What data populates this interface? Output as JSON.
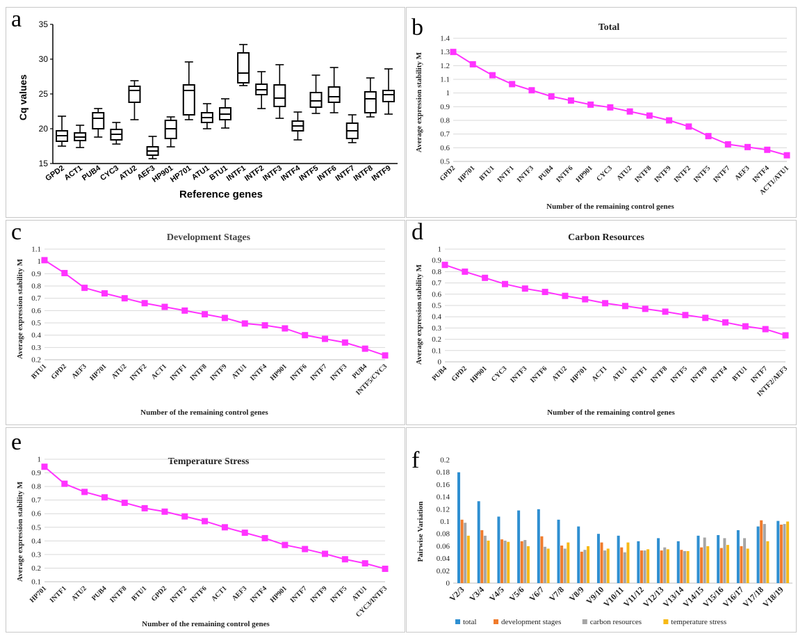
{
  "panels": {
    "a": "a",
    "b": "b",
    "c": "c",
    "d": "d",
    "e": "e",
    "f": "f"
  },
  "chart_data": [
    {
      "id": "a",
      "type": "box",
      "title": "",
      "xlabel": "Reference genes",
      "ylabel": "Cq values",
      "ylim": [
        15,
        35
      ],
      "yticks": [
        15,
        20,
        25,
        30,
        35
      ],
      "categories": [
        "GPD2",
        "ACT1",
        "PUB4",
        "CYC3",
        "ATU2",
        "AEF3",
        "HP901",
        "HP701",
        "ATU1",
        "BTU1",
        "INTF1",
        "INTF2",
        "INTF3",
        "INTF4",
        "INTF5",
        "INTF6",
        "INTF7",
        "INTF8",
        "INTF9"
      ],
      "boxes": [
        {
          "min": 17.5,
          "q1": 18.2,
          "median": 19.0,
          "q3": 19.7,
          "max": 21.8
        },
        {
          "min": 17.3,
          "q1": 18.3,
          "median": 18.8,
          "q3": 19.4,
          "max": 20.5
        },
        {
          "min": 18.8,
          "q1": 20.0,
          "median": 21.5,
          "q3": 22.3,
          "max": 22.9
        },
        {
          "min": 17.8,
          "q1": 18.4,
          "median": 19.2,
          "q3": 19.9,
          "max": 20.9
        },
        {
          "min": 21.3,
          "q1": 23.8,
          "median": 25.5,
          "q3": 26.1,
          "max": 26.9
        },
        {
          "min": 15.7,
          "q1": 16.2,
          "median": 16.8,
          "q3": 17.4,
          "max": 18.9
        },
        {
          "min": 17.4,
          "q1": 18.6,
          "median": 20.0,
          "q3": 21.2,
          "max": 21.7
        },
        {
          "min": 21.3,
          "q1": 22.0,
          "median": 25.5,
          "q3": 26.3,
          "max": 29.6
        },
        {
          "min": 20.0,
          "q1": 20.9,
          "median": 21.6,
          "q3": 22.3,
          "max": 23.6
        },
        {
          "min": 20.1,
          "q1": 21.3,
          "median": 22.1,
          "q3": 23.0,
          "max": 24.3
        },
        {
          "min": 26.2,
          "q1": 26.6,
          "median": 28.0,
          "q3": 30.9,
          "max": 32.1
        },
        {
          "min": 22.9,
          "q1": 24.9,
          "median": 25.6,
          "q3": 26.4,
          "max": 28.2
        },
        {
          "min": 21.5,
          "q1": 23.2,
          "median": 24.4,
          "q3": 26.3,
          "max": 29.2
        },
        {
          "min": 18.4,
          "q1": 19.7,
          "median": 20.4,
          "q3": 21.1,
          "max": 22.4
        },
        {
          "min": 22.2,
          "q1": 23.1,
          "median": 24.0,
          "q3": 25.2,
          "max": 27.7
        },
        {
          "min": 22.3,
          "q1": 23.8,
          "median": 24.6,
          "q3": 26.0,
          "max": 28.8
        },
        {
          "min": 18.0,
          "q1": 18.6,
          "median": 19.7,
          "q3": 20.8,
          "max": 22.0
        },
        {
          "min": 21.7,
          "q1": 22.3,
          "median": 24.3,
          "q3": 25.3,
          "max": 27.3
        },
        {
          "min": 22.1,
          "q1": 23.9,
          "median": 24.9,
          "q3": 25.5,
          "max": 28.6
        }
      ]
    },
    {
      "id": "b",
      "type": "line",
      "title": "Total",
      "xlabel": "Number of the remaining control genes",
      "ylabel": "Average expression stability M",
      "ylim": [
        0.5,
        1.4
      ],
      "yticks": [
        0.5,
        0.6,
        0.7,
        0.8,
        0.9,
        1,
        1.1,
        1.2,
        1.3,
        1.4
      ],
      "categories": [
        "GPD2",
        "HP701",
        "BTU1",
        "INTF1",
        "INTF3",
        "PUB4",
        "INTF6",
        "HP901",
        "CYC3",
        "ATU2",
        "INTF8",
        "INTF9",
        "INTF2",
        "INTF5",
        "INTF7",
        "AEF3",
        "INTF4",
        "ACT1/ATU1"
      ],
      "values": [
        1.3,
        1.21,
        1.13,
        1.065,
        1.02,
        0.975,
        0.945,
        0.915,
        0.895,
        0.865,
        0.835,
        0.8,
        0.755,
        0.685,
        0.625,
        0.605,
        0.585,
        0.545
      ]
    },
    {
      "id": "c",
      "type": "line",
      "title": "Development Stages",
      "xlabel": "Number of the remaining control genes",
      "ylabel": "Average expression stability M",
      "ylim": [
        0.2,
        1.1
      ],
      "yticks": [
        0.2,
        0.3,
        0.4,
        0.5,
        0.6,
        0.7,
        0.8,
        0.9,
        1,
        1.1
      ],
      "categories": [
        "BTU1",
        "GPD2",
        "AEF3",
        "HP701",
        "ATU2",
        "INTF2",
        "ACT1",
        "INTF1",
        "INTF8",
        "INTF9",
        "ATU1",
        "INTF4",
        "HP901",
        "INTF6",
        "INTF7",
        "INTF3",
        "PUB4",
        "INTF5/CYC3"
      ],
      "values": [
        1.01,
        0.905,
        0.785,
        0.74,
        0.7,
        0.66,
        0.63,
        0.6,
        0.57,
        0.54,
        0.495,
        0.48,
        0.455,
        0.4,
        0.37,
        0.34,
        0.29,
        0.235
      ]
    },
    {
      "id": "d",
      "type": "line",
      "title": "Carbon Resources",
      "xlabel": "Number of the remaining control genes",
      "ylabel": "Average expression stability M",
      "ylim": [
        0,
        1
      ],
      "yticks": [
        0,
        0.1,
        0.2,
        0.3,
        0.4,
        0.5,
        0.6,
        0.7,
        0.8,
        0.9,
        1
      ],
      "categories": [
        "PUB4",
        "GPD2",
        "HP901",
        "CYC3",
        "INTF3",
        "INTF6",
        "ATU2",
        "HP701",
        "ACT1",
        "ATU1",
        "INTF1",
        "INTF8",
        "INTF5",
        "INTF9",
        "INTF4",
        "BTU1",
        "INTF7",
        "INTF2/AEF3"
      ],
      "values": [
        0.86,
        0.8,
        0.745,
        0.69,
        0.65,
        0.62,
        0.585,
        0.555,
        0.52,
        0.495,
        0.47,
        0.445,
        0.415,
        0.39,
        0.35,
        0.315,
        0.29,
        0.235
      ]
    },
    {
      "id": "e",
      "type": "line",
      "title": "Temperature Stress",
      "xlabel": "Number of the remaining control genes",
      "ylabel": "Average expression stability M",
      "ylim": [
        0.1,
        1
      ],
      "yticks": [
        0.1,
        0.2,
        0.3,
        0.4,
        0.5,
        0.6,
        0.7,
        0.8,
        0.9,
        1
      ],
      "categories": [
        "HP701",
        "INTF1",
        "ATU2",
        "PUB4",
        "INTF8",
        "BTU1",
        "GPD2",
        "INTF2",
        "INTF6",
        "ACT1",
        "AEF3",
        "INTF4",
        "HP901",
        "INTF7",
        "INTF9",
        "INTF5",
        "ATU1",
        "CYC3/INTF3"
      ],
      "values": [
        0.945,
        0.82,
        0.76,
        0.72,
        0.68,
        0.64,
        0.615,
        0.58,
        0.545,
        0.5,
        0.46,
        0.42,
        0.37,
        0.34,
        0.305,
        0.265,
        0.235,
        0.195
      ]
    },
    {
      "id": "f",
      "type": "bar",
      "title": "",
      "xlabel": "",
      "ylabel": "Pairwise Variation",
      "ylim": [
        0,
        0.2
      ],
      "yticks": [
        0,
        0.02,
        0.04,
        0.06,
        0.08,
        0.1,
        0.12,
        0.14,
        0.16,
        0.18,
        0.2
      ],
      "categories": [
        "V2/3",
        "V3/4",
        "V4/5",
        "V5/6",
        "V6/7",
        "V7/8",
        "V8/9",
        "V9/10",
        "V10/11",
        "V11/12",
        "V12/13",
        "V13/14",
        "V14/15",
        "V15/16",
        "V16/17",
        "V17/18",
        "V18/19"
      ],
      "series": [
        {
          "name": "total",
          "color": "#2f8fd1",
          "values": [
            0.18,
            0.133,
            0.108,
            0.118,
            0.12,
            0.103,
            0.092,
            0.08,
            0.077,
            0.068,
            0.073,
            0.068,
            0.077,
            0.078,
            0.086,
            0.092,
            0.101
          ]
        },
        {
          "name": "development stages",
          "color": "#f07b2c",
          "values": [
            0.103,
            0.086,
            0.071,
            0.068,
            0.076,
            0.061,
            0.051,
            0.066,
            0.058,
            0.053,
            0.053,
            0.054,
            0.058,
            0.057,
            0.06,
            0.102,
            0.095
          ]
        },
        {
          "name": "carbon resources",
          "color": "#a6a6a6",
          "values": [
            0.098,
            0.077,
            0.069,
            0.07,
            0.059,
            0.056,
            0.054,
            0.053,
            0.05,
            0.053,
            0.058,
            0.052,
            0.074,
            0.073,
            0.073,
            0.096,
            0.096
          ]
        },
        {
          "name": "temperature stress",
          "color": "#f7b916",
          "values": [
            0.077,
            0.069,
            0.067,
            0.06,
            0.056,
            0.066,
            0.06,
            0.056,
            0.066,
            0.055,
            0.055,
            0.052,
            0.06,
            0.062,
            0.056,
            0.068,
            0.1
          ]
        }
      ],
      "legend": "bottom"
    }
  ]
}
